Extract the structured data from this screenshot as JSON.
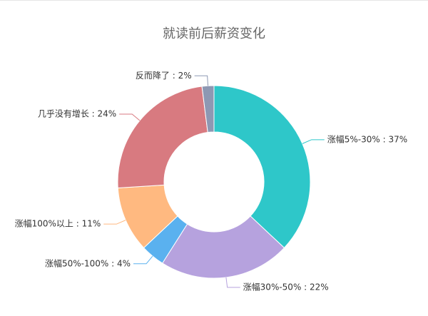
{
  "chart_data": {
    "type": "donut",
    "title": "就读前后薪资变化",
    "labels": [
      "涨幅5%-30% : 37%",
      "涨幅30%-50% : 22%",
      "涨幅50%-100% : 4%",
      "涨幅100%以上 : 11%",
      "几乎没有增长 : 24%",
      "反而降了 : 2%"
    ],
    "values": [
      37,
      22,
      4,
      11,
      24,
      2
    ],
    "colors": [
      "#2ec7c9",
      "#b6a2de",
      "#5ab1ef",
      "#ffb980",
      "#d87a80",
      "#8d98b3"
    ]
  }
}
